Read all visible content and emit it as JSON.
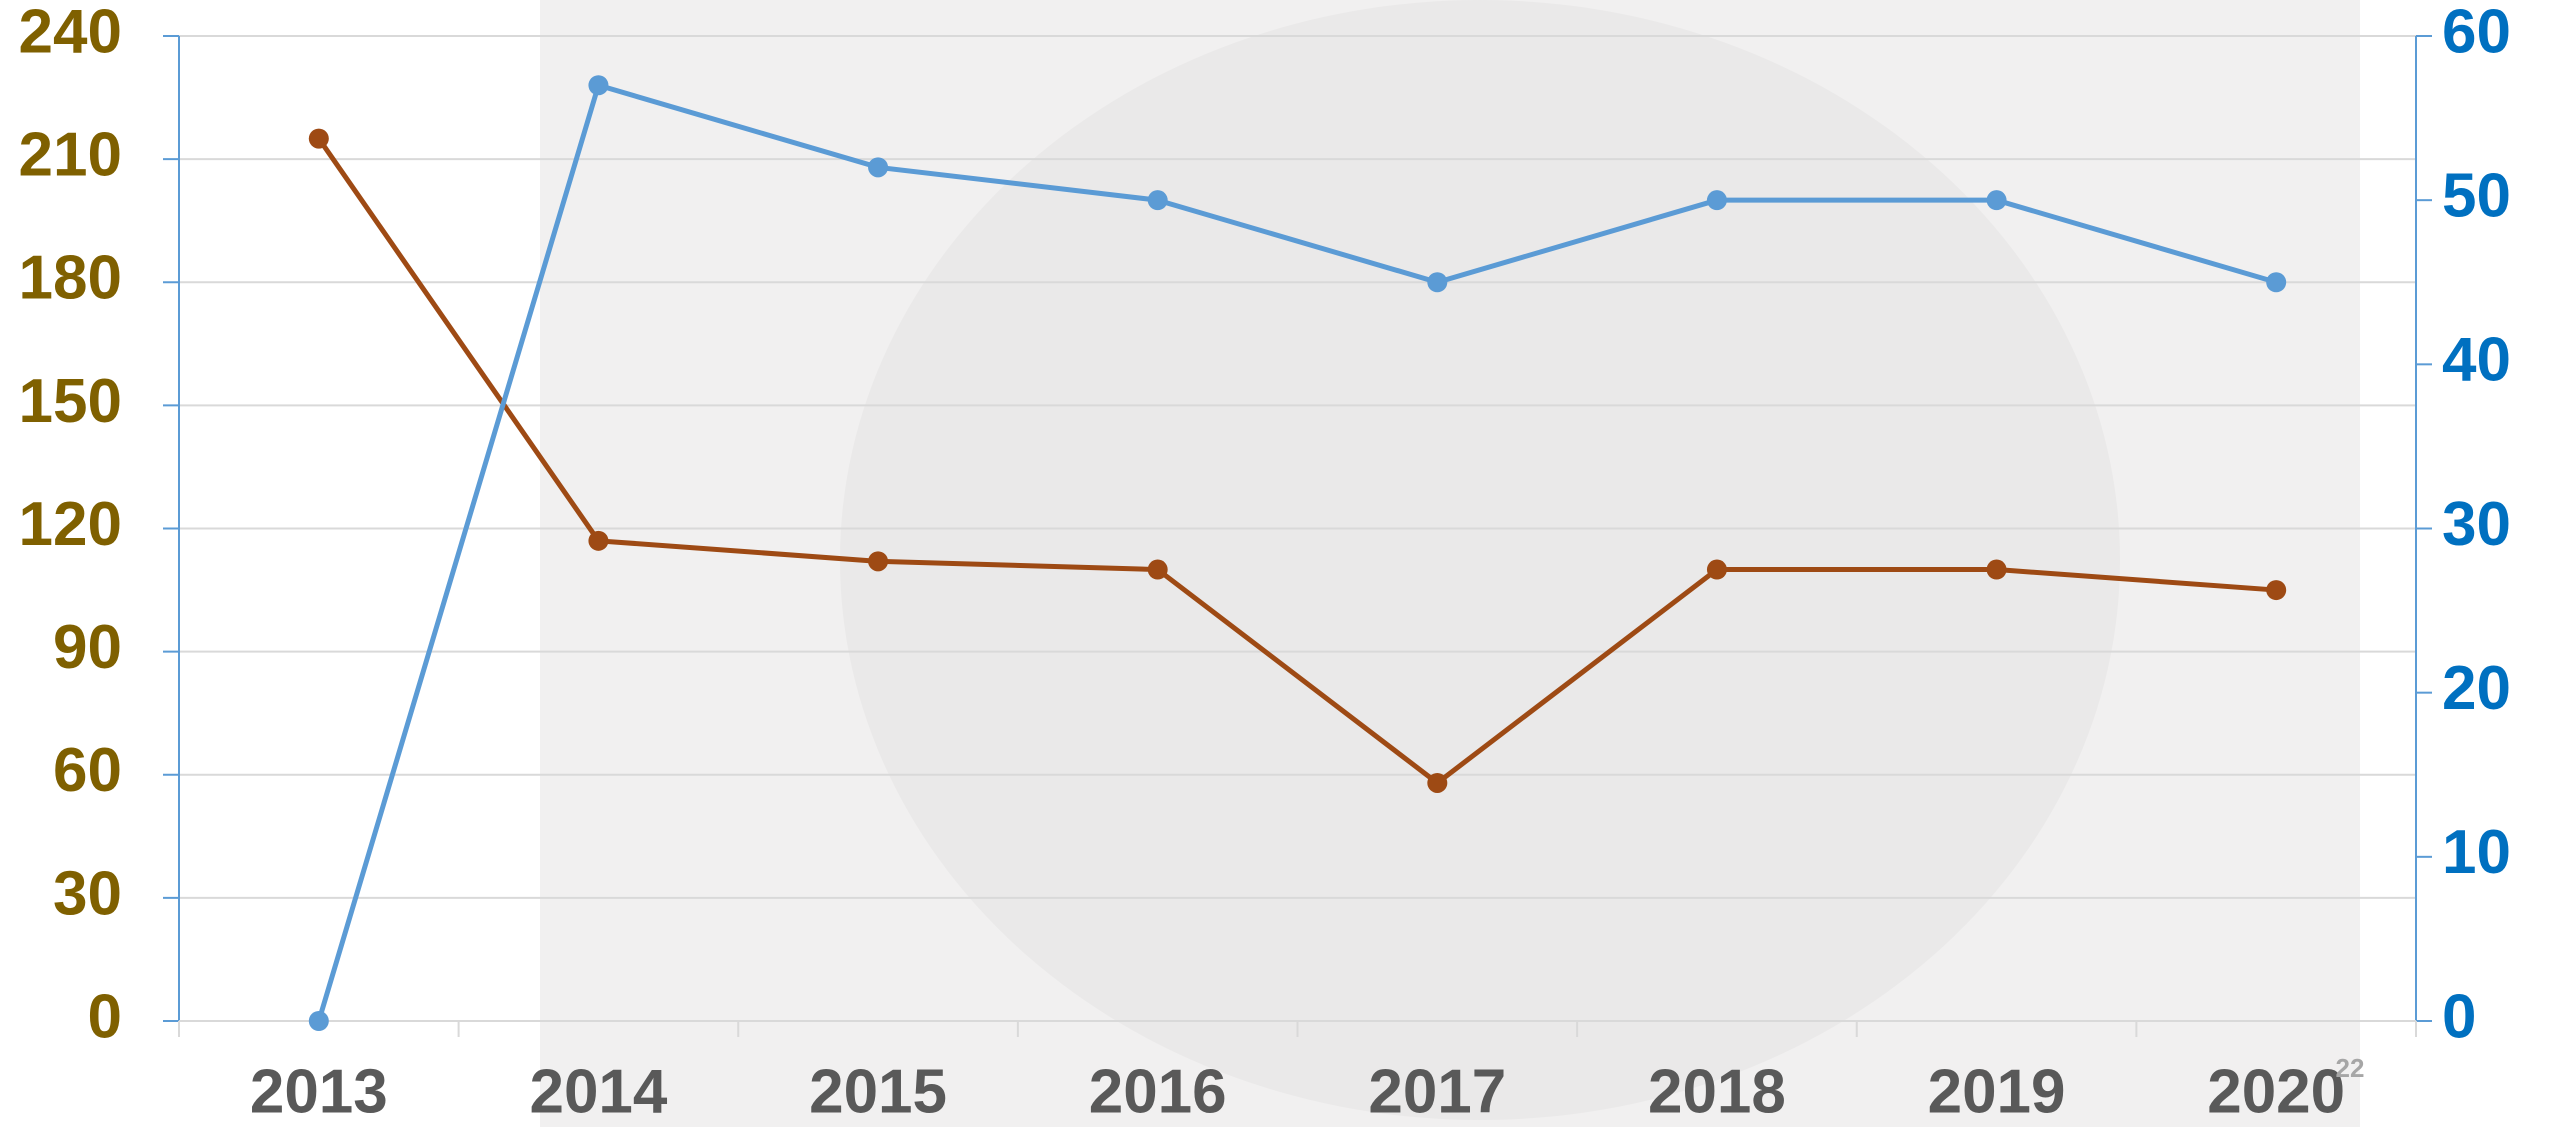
{
  "chart_data": {
    "type": "line",
    "categories": [
      "2013",
      "2014",
      "2015",
      "2016",
      "2017",
      "2018",
      "2019",
      "2020"
    ],
    "series": [
      {
        "color": "#9e4a14",
        "values": [
          215,
          117,
          112,
          110,
          58,
          110,
          110,
          105
        ]
      },
      {
        "color": "#5b9bd5",
        "axis": "y2",
        "values": [
          0,
          57,
          52,
          50,
          45,
          50,
          50,
          45
        ]
      }
    ],
    "ylim": [
      0,
      240
    ],
    "yticks": [
      0,
      30,
      60,
      90,
      120,
      150,
      180,
      210,
      240
    ],
    "ycolor": "#7f6000",
    "y2lim": [
      0,
      60
    ],
    "y2ticks": [
      0,
      10,
      20,
      30,
      40,
      50,
      60
    ],
    "y2color": "#0070c0",
    "grid": true,
    "annotations": [
      "22"
    ]
  }
}
